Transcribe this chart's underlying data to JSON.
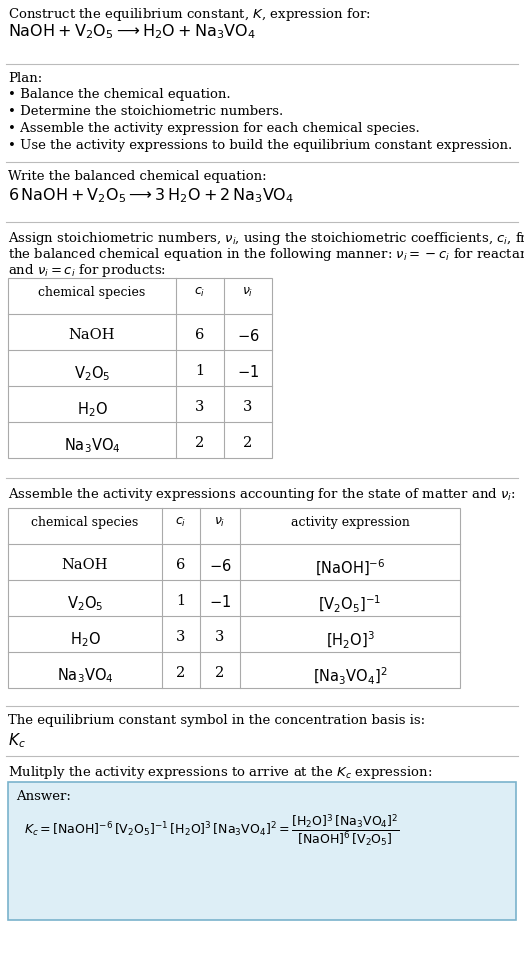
{
  "bg_color": "#ffffff",
  "text_color": "#000000",
  "section_bg": "#ddeef6",
  "border_color": "#aaaaaa",
  "answer_border": "#7ab3cc",
  "title_line1": "Construct the equilibrium constant, $K$, expression for:",
  "title_line2": "$\\mathrm{NaOH + V_2O_5 \\longrightarrow H_2O + Na_3VO_4}$",
  "balanced_header": "Write the balanced chemical equation:",
  "balanced_eq": "$\\mathrm{6\\,NaOH + V_2O_5 \\longrightarrow 3\\,H_2O + 2\\,Na_3VO_4}$",
  "kc_header": "The equilibrium constant symbol in the concentration basis is:",
  "kc_symbol": "$K_c$",
  "multiply_header": "Mulitply the activity expressions to arrive at the $K_c$ expression:"
}
